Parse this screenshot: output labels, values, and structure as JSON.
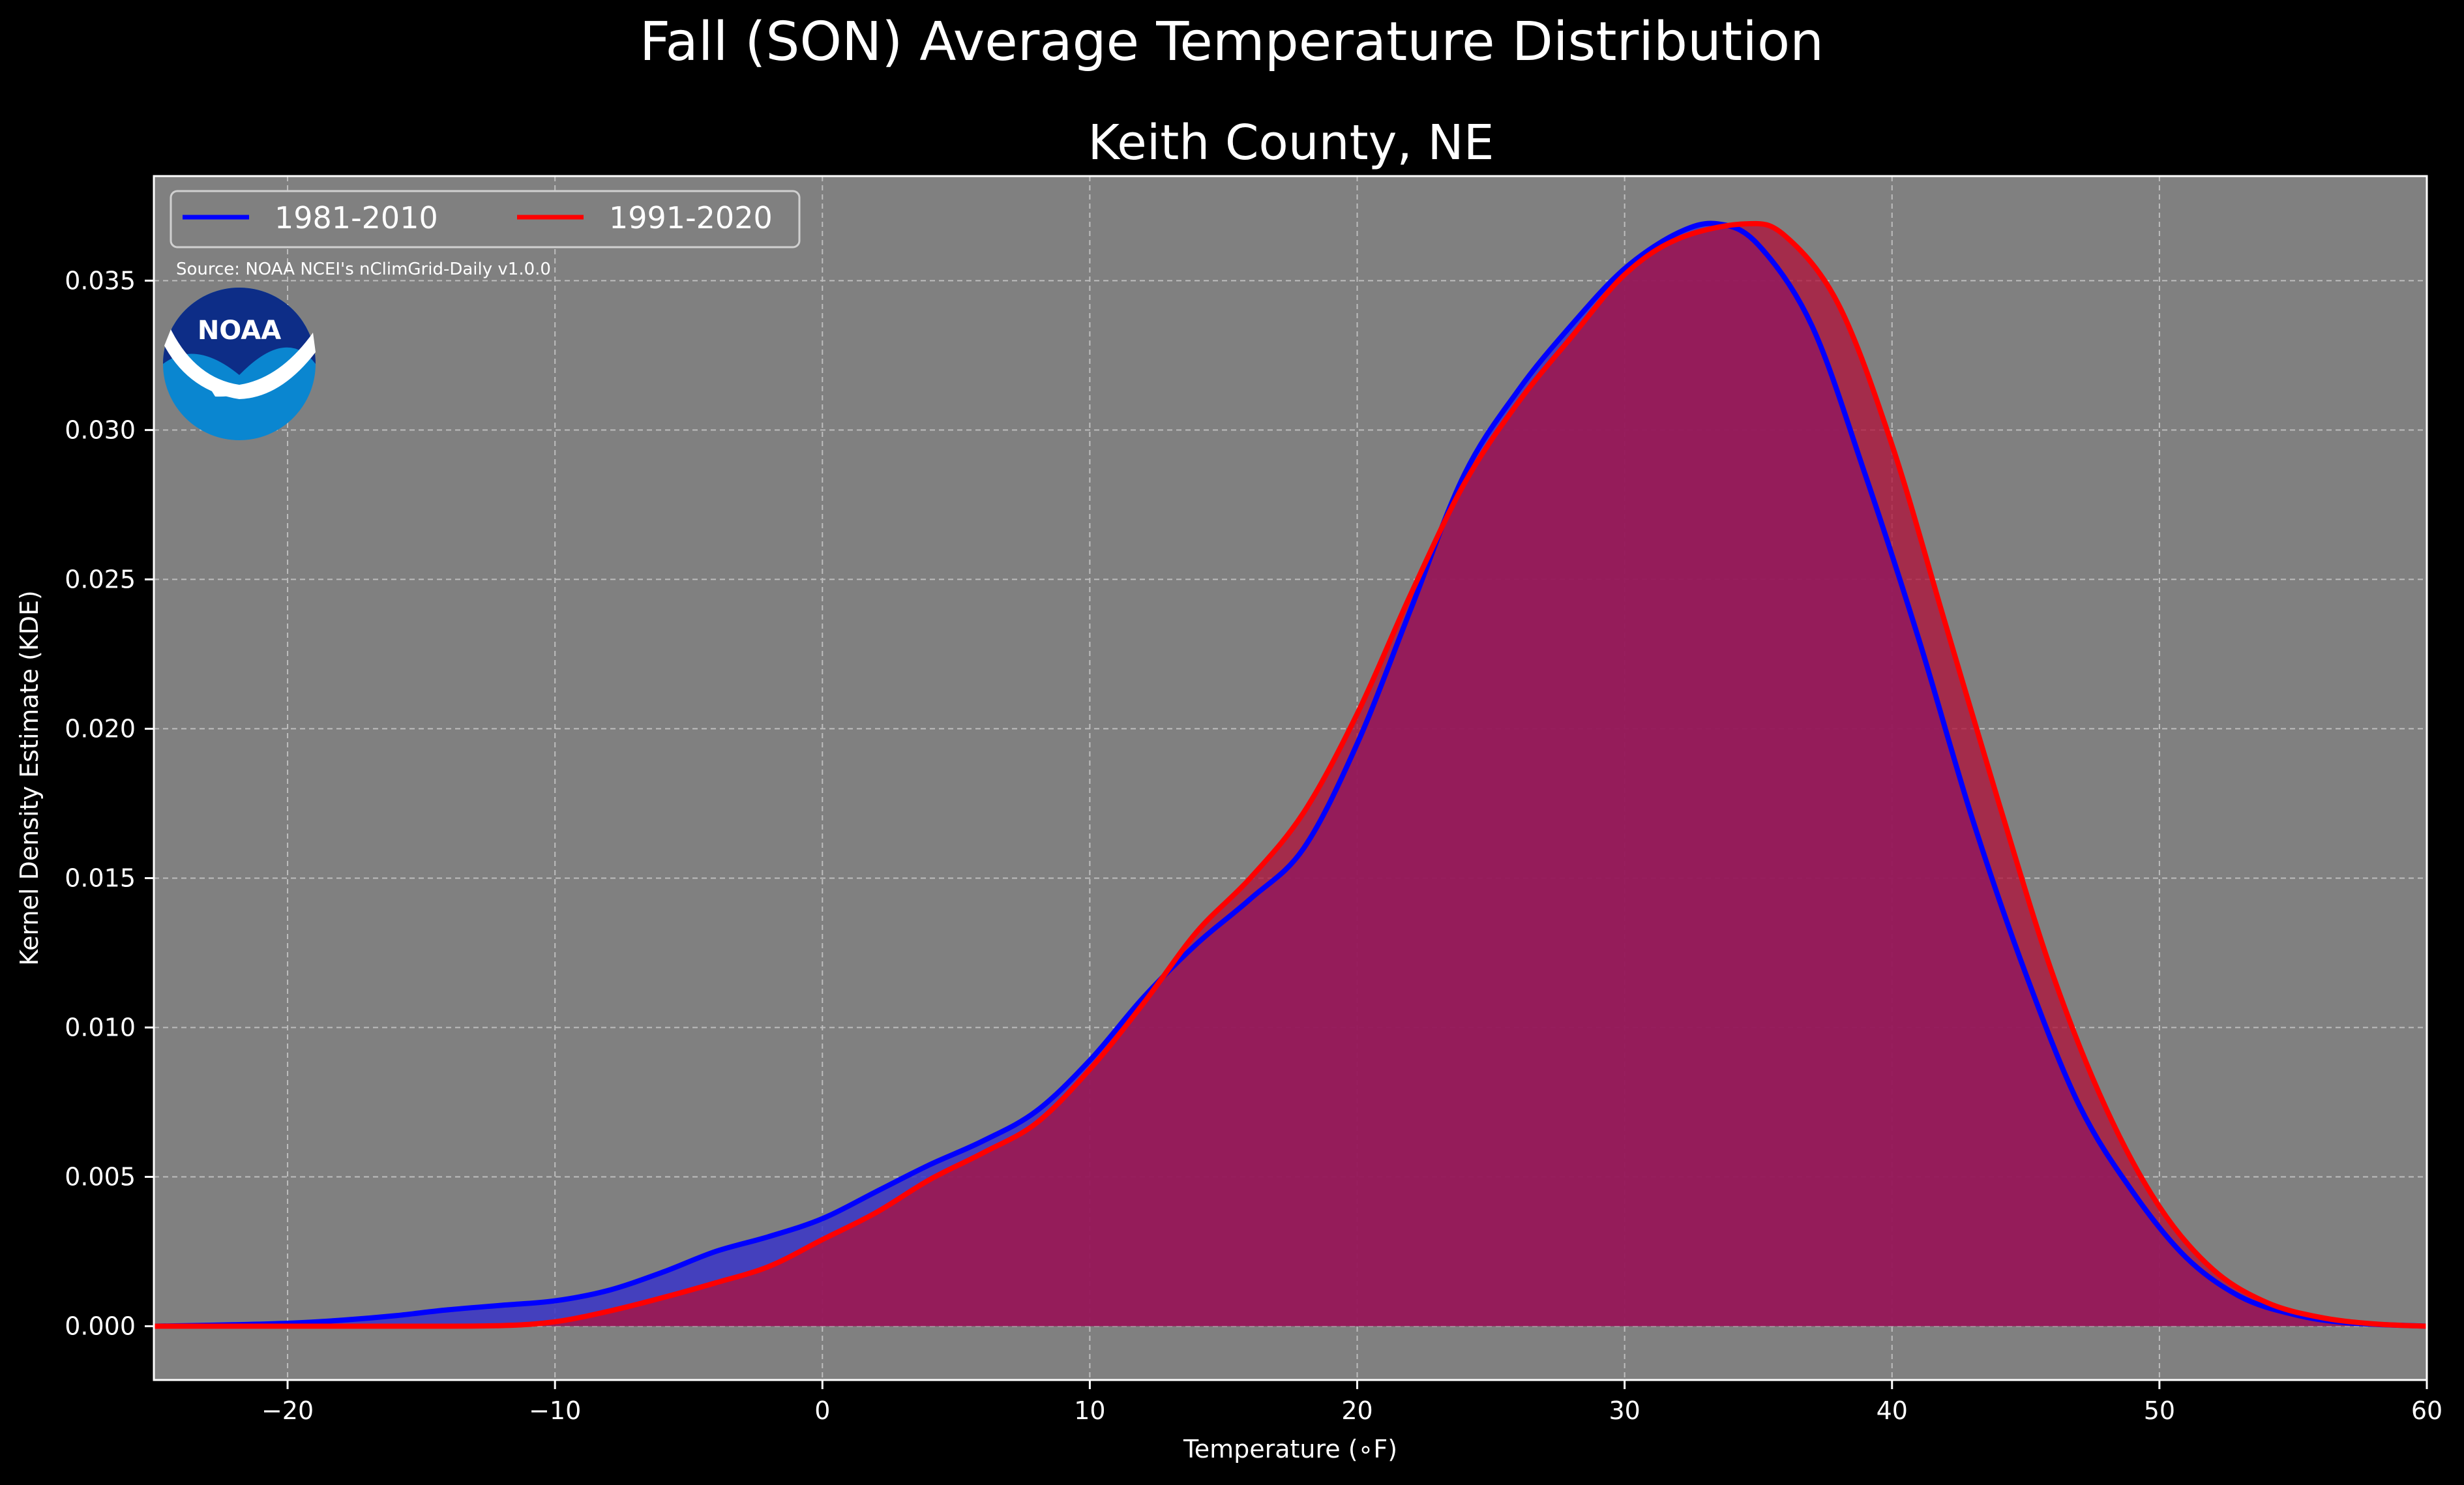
{
  "chart_data": {
    "type": "area",
    "suptitle": "Fall (SON) Average Temperature Distribution",
    "title": "Keith County, NE",
    "xlabel": "Temperature (∘F)",
    "ylabel": "Kernel Density Estimate (KDE)",
    "xlim": [
      -25,
      60
    ],
    "ylim": [
      -0.0018,
      0.0385
    ],
    "xticks": [
      -20,
      -10,
      0,
      10,
      20,
      30,
      40,
      50,
      60
    ],
    "xtick_labels": [
      "−20",
      "−10",
      "0",
      "10",
      "20",
      "30",
      "40",
      "50",
      "60"
    ],
    "yticks": [
      0.0,
      0.005,
      0.01,
      0.015,
      0.02,
      0.025,
      0.03,
      0.035
    ],
    "ytick_labels": [
      "0.000",
      "0.005",
      "0.010",
      "0.015",
      "0.020",
      "0.025",
      "0.030",
      "0.035"
    ],
    "grid": true,
    "legend_position": "top-left",
    "source": "Source: NOAA NCEI's nClimGrid-Daily v1.0.0",
    "logo_text": "NOAA",
    "series": [
      {
        "name": "1981-2010",
        "color": "#0000ff",
        "fill": "#3a35c8",
        "x": [
          -25,
          -22,
          -20,
          -18,
          -16,
          -14,
          -12,
          -10,
          -8,
          -6,
          -4,
          -2,
          0,
          2,
          4,
          6,
          8,
          10,
          12,
          14,
          16,
          18,
          20,
          22,
          24,
          26,
          28,
          30,
          32,
          33.5,
          35,
          37,
          39,
          41,
          43,
          45,
          47,
          49,
          51,
          53,
          55,
          57,
          60
        ],
        "y": [
          0.0,
          5e-05,
          0.0001,
          0.0002,
          0.00035,
          0.00055,
          0.0007,
          0.00085,
          0.0012,
          0.0018,
          0.0025,
          0.003,
          0.0036,
          0.0045,
          0.0054,
          0.0062,
          0.0072,
          0.0089,
          0.011,
          0.0128,
          0.0143,
          0.016,
          0.0195,
          0.024,
          0.0285,
          0.0313,
          0.0335,
          0.0354,
          0.0366,
          0.0369,
          0.0362,
          0.0335,
          0.0285,
          0.023,
          0.017,
          0.0118,
          0.0074,
          0.0045,
          0.0023,
          0.001,
          0.0004,
          0.00012,
          0.0
        ]
      },
      {
        "name": "1991-2020",
        "color": "#ff0000",
        "fill": "#b0103a",
        "x": [
          -25,
          -20,
          -15,
          -12,
          -10,
          -8,
          -6,
          -4,
          -2,
          0,
          2,
          4,
          6,
          8,
          10,
          12,
          14,
          16,
          18,
          20,
          22,
          24,
          26,
          28,
          30,
          32,
          34.5,
          36,
          38,
          40,
          42,
          44,
          46,
          48,
          50,
          52,
          54,
          56,
          58,
          60
        ],
        "y": [
          0.0,
          0.0,
          0.0,
          2e-05,
          0.00015,
          0.0005,
          0.00095,
          0.00145,
          0.002,
          0.0029,
          0.0038,
          0.0049,
          0.0058,
          0.0068,
          0.0086,
          0.0108,
          0.0132,
          0.015,
          0.0172,
          0.0205,
          0.0245,
          0.0282,
          0.0309,
          0.0331,
          0.0352,
          0.0364,
          0.0369,
          0.0365,
          0.0342,
          0.0295,
          0.0235,
          0.0175,
          0.0118,
          0.0073,
          0.004,
          0.0019,
          0.0008,
          0.0003,
          8e-05,
          0.0
        ]
      }
    ]
  }
}
